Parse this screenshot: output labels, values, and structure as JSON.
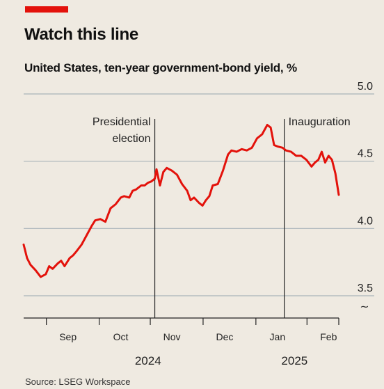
{
  "header": {
    "title": "Watch this line",
    "subtitle": "United States, ten-year government-bond yield, %",
    "source": "Source: LSEG Workspace"
  },
  "colors": {
    "line": "#e3120b",
    "accent_tag": "#e3120b",
    "grid": "#a9b3b9",
    "background": "#efeae1"
  },
  "chart_data": {
    "type": "line",
    "title": "Watch this line",
    "subtitle": "United States, ten-year government-bond yield, %",
    "xlabel": "",
    "ylabel": "",
    "ylim": [
      3.5,
      5.0
    ],
    "yticks": [
      3.5,
      4.0,
      4.5,
      5.0
    ],
    "ytick_labels": [
      "3.5",
      "4.0",
      "4.5",
      "5.0"
    ],
    "xlim": [
      "2024-08-20",
      "2025-02-21"
    ],
    "month_ticks": [
      {
        "label": "Sep",
        "date": "2024-09-15"
      },
      {
        "label": "Oct",
        "date": "2024-10-16"
      },
      {
        "label": "Nov",
        "date": "2024-11-15"
      },
      {
        "label": "Dec",
        "date": "2024-12-16"
      },
      {
        "label": "Jan",
        "date": "2025-01-16"
      },
      {
        "label": "Feb",
        "date": "2025-02-15"
      }
    ],
    "year_labels": [
      {
        "label": "2024",
        "date": "2024-11-01"
      },
      {
        "label": "2025",
        "date": "2025-01-26"
      }
    ],
    "grid": true,
    "axis_break_symbol": "~",
    "annotations": [
      {
        "label_lines": [
          "Presidential",
          "election"
        ],
        "date": "2024-11-05"
      },
      {
        "label_lines": [
          "Inauguration"
        ],
        "date": "2025-01-20"
      }
    ],
    "series": [
      {
        "x": [
          "2024-08-20",
          "2024-08-22",
          "2024-08-24",
          "2024-08-27",
          "2024-08-30",
          "2024-09-02",
          "2024-09-04",
          "2024-09-06",
          "2024-09-09",
          "2024-09-11",
          "2024-09-13",
          "2024-09-16",
          "2024-09-18",
          "2024-09-20",
          "2024-09-23",
          "2024-09-26",
          "2024-09-29",
          "2024-10-01",
          "2024-10-04",
          "2024-10-07",
          "2024-10-10",
          "2024-10-13",
          "2024-10-16",
          "2024-10-18",
          "2024-10-21",
          "2024-10-23",
          "2024-10-25",
          "2024-10-28",
          "2024-10-30",
          "2024-11-01",
          "2024-11-03",
          "2024-11-05",
          "2024-11-06",
          "2024-11-08",
          "2024-11-10",
          "2024-11-12",
          "2024-11-15",
          "2024-11-18",
          "2024-11-21",
          "2024-11-24",
          "2024-11-26",
          "2024-11-28",
          "2024-12-01",
          "2024-12-03",
          "2024-12-05",
          "2024-12-07",
          "2024-12-09",
          "2024-12-12",
          "2024-12-15",
          "2024-12-18",
          "2024-12-20",
          "2024-12-23",
          "2024-12-26",
          "2024-12-29",
          "2025-01-01",
          "2025-01-04",
          "2025-01-07",
          "2025-01-10",
          "2025-01-12",
          "2025-01-14",
          "2025-01-16",
          "2025-01-19",
          "2025-01-21",
          "2025-01-24",
          "2025-01-27",
          "2025-01-30",
          "2025-02-02",
          "2025-02-05",
          "2025-02-07",
          "2025-02-09",
          "2025-02-11",
          "2025-02-13",
          "2025-02-15",
          "2025-02-17",
          "2025-02-19",
          "2025-02-21"
        ],
        "y": [
          3.88,
          3.78,
          3.73,
          3.69,
          3.64,
          3.66,
          3.72,
          3.7,
          3.74,
          3.76,
          3.72,
          3.78,
          3.8,
          3.83,
          3.88,
          3.95,
          4.02,
          4.06,
          4.07,
          4.05,
          4.15,
          4.18,
          4.23,
          4.24,
          4.23,
          4.28,
          4.29,
          4.32,
          4.32,
          4.34,
          4.35,
          4.37,
          4.44,
          4.32,
          4.42,
          4.45,
          4.43,
          4.4,
          4.33,
          4.28,
          4.21,
          4.23,
          4.19,
          4.17,
          4.21,
          4.24,
          4.32,
          4.33,
          4.43,
          4.55,
          4.58,
          4.57,
          4.59,
          4.58,
          4.6,
          4.67,
          4.7,
          4.77,
          4.75,
          4.62,
          4.61,
          4.6,
          4.58,
          4.57,
          4.54,
          4.54,
          4.51,
          4.46,
          4.49,
          4.51,
          4.57,
          4.49,
          4.54,
          4.51,
          4.41,
          4.25
        ]
      }
    ]
  }
}
